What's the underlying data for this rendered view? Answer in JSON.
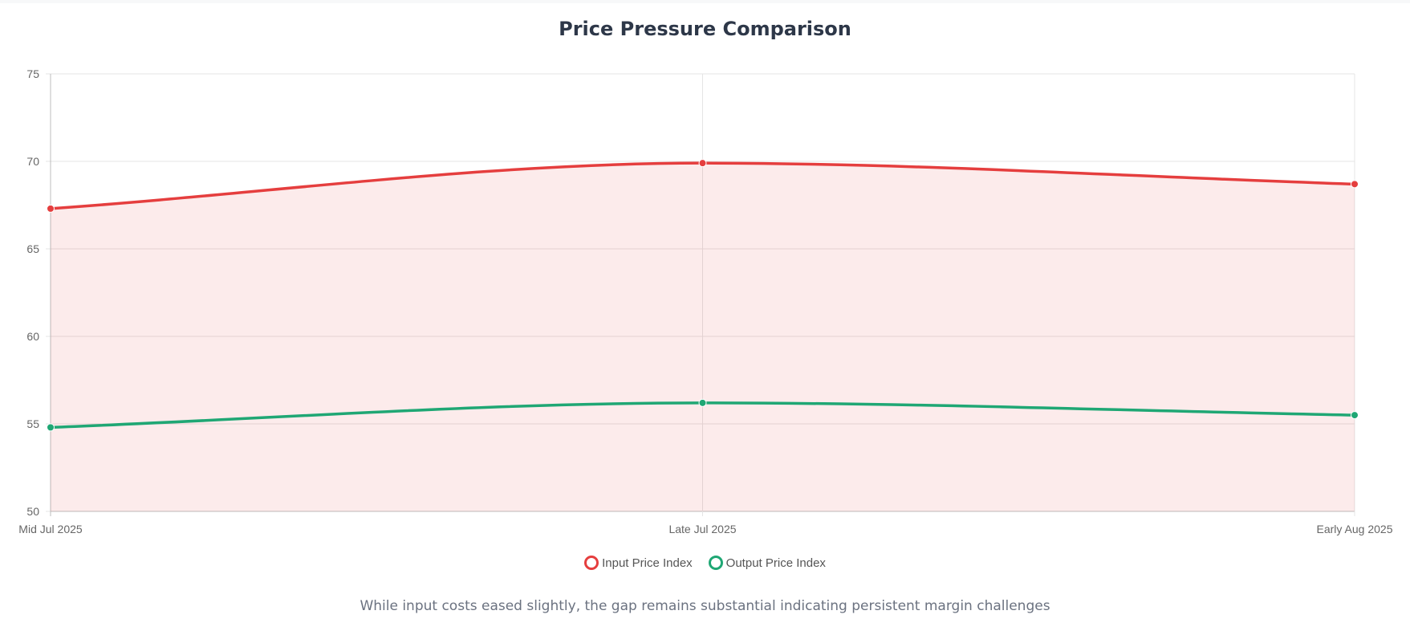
{
  "chart_data": {
    "type": "line",
    "title": "Price Pressure Comparison",
    "subtitle": "While input costs eased slightly, the gap remains substantial indicating persistent margin challenges",
    "categories": [
      "Mid Jul 2025",
      "Late Jul 2025",
      "Early Aug 2025"
    ],
    "series": [
      {
        "name": "Input Price Index",
        "values": [
          67.3,
          69.9,
          68.7
        ],
        "color": "#e53e3e",
        "fill": "rgba(229, 62, 62, 0.10)"
      },
      {
        "name": "Output Price Index",
        "values": [
          54.8,
          56.2,
          55.5
        ],
        "color": "#1fa774",
        "fill": "none"
      }
    ],
    "y_ticks": [
      "50",
      "55",
      "60",
      "65",
      "70",
      "75"
    ],
    "ylim": [
      50,
      75
    ],
    "xlabel": "",
    "ylabel": "",
    "grid": true,
    "legend_position": "bottom"
  }
}
